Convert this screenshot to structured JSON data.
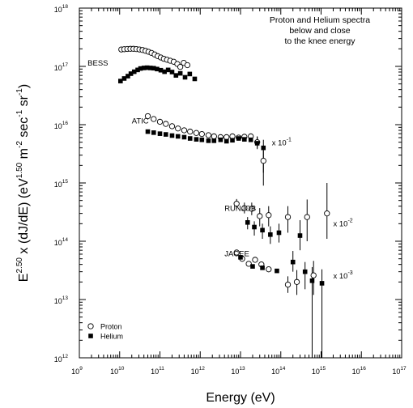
{
  "chart_data": {
    "type": "scatter",
    "title": [
      "Proton and Helium spectra",
      "below and close",
      "to the knee energy"
    ],
    "xlabel": "Energy (eV)",
    "ylabel": {
      "base": "E",
      "exp1": "2.50",
      "mid": " x (dJ/dE)  (eV",
      "exp2": "1.50",
      "unit_m": " m",
      "exp3": "-2",
      "unit_sec": " sec",
      "exp4": "-1",
      "unit_sr": " sr",
      "exp5": "-1",
      "close": ")"
    },
    "x_scale": "log",
    "y_scale": "log",
    "xlim": [
      1000000000.0,
      1e+17
    ],
    "ylim": [
      1000000000000.0,
      1e+18
    ],
    "x_tick_exponents": [
      9,
      10,
      11,
      12,
      13,
      14,
      15,
      16,
      17
    ],
    "y_tick_exponents": [
      12,
      13,
      14,
      15,
      16,
      17,
      18
    ],
    "tick_base": "10",
    "grid": false,
    "legend": {
      "position": "bottom-left",
      "items": [
        {
          "label": "Proton",
          "marker": "open-circle"
        },
        {
          "label": "Helium",
          "marker": "filled-square"
        }
      ]
    },
    "annotations": [
      {
        "key": "bess",
        "text": "BESS",
        "x": 1600000000.0,
        "y": 1.03e+17
      },
      {
        "key": "atic",
        "text": "ATIC",
        "x": 20000000000.0,
        "y": 1.05e+16
      },
      {
        "key": "runjob",
        "text": "RUNJOB",
        "x": 4000000000000.0,
        "y": 330000000000000.0
      },
      {
        "key": "jacee",
        "text": "JACEE",
        "x": 4000000000000.0,
        "y": 55000000000000.0
      }
    ],
    "scale_factors": [
      {
        "key": "atic",
        "base": "x 10",
        "exp": "-1",
        "x": 60000000000000.0,
        "y": 4400000000000000.0
      },
      {
        "key": "runjob",
        "base": "x 10",
        "exp": "-2",
        "x": 2000000000000000.0,
        "y": 180000000000000.0
      },
      {
        "key": "jacee",
        "base": "x 10",
        "exp": "-3",
        "x": 2000000000000000.0,
        "y": 23000000000000.0
      }
    ],
    "series": [
      {
        "name": "Proton",
        "experiment": "BESS",
        "marker": "open-circle",
        "points": [
          [
            11000000000.0,
            1.95e+17
          ],
          [
            13000000000.0,
            1.97e+17
          ],
          [
            15500000000.0,
            1.99e+17
          ],
          [
            18500000000.0,
            2e+17
          ],
          [
            22000000000.0,
            2e+17
          ],
          [
            26000000000.0,
            1.98e+17
          ],
          [
            31000000000.0,
            1.95e+17
          ],
          [
            37000000000.0,
            1.91e+17
          ],
          [
            44000000000.0,
            1.85e+17
          ],
          [
            52000000000.0,
            1.78e+17
          ],
          [
            62000000000.0,
            1.7e+17
          ],
          [
            74000000000.0,
            1.6e+17
          ],
          [
            88000000000.0,
            1.5e+17
          ],
          [
            105000000000.0,
            1.42e+17
          ],
          [
            125000000000.0,
            1.35e+17
          ],
          [
            150000000000.0,
            1.3e+17
          ],
          [
            180000000000.0,
            1.25e+17
          ],
          [
            220000000000.0,
            1.2e+17
          ],
          [
            270000000000.0,
            1.1e+17
          ],
          [
            320000000000.0,
            9.8e+16
          ],
          [
            390000000000.0,
            1.15e+17
          ],
          [
            480000000000.0,
            1.05e+17
          ]
        ]
      },
      {
        "name": "Helium",
        "experiment": "BESS",
        "marker": "filled-square",
        "points": [
          [
            10500000000.0,
            5.6e+16
          ],
          [
            13000000000.0,
            6.2e+16
          ],
          [
            16000000000.0,
            6.8e+16
          ],
          [
            19000000000.0,
            7.5e+16
          ],
          [
            23000000000.0,
            8.1e+16
          ],
          [
            28000000000.0,
            8.7e+16
          ],
          [
            33000000000.0,
            9.2e+16
          ],
          [
            40000000000.0,
            9.4e+16
          ],
          [
            48000000000.0,
            9.5e+16
          ],
          [
            58000000000.0,
            9.4e+16
          ],
          [
            70000000000.0,
            9.3e+16
          ],
          [
            85000000000.0,
            9e+16
          ],
          [
            105000000000.0,
            8.6e+16
          ],
          [
            130000000000.0,
            8.1e+16
          ],
          [
            160000000000.0,
            8.7e+16
          ],
          [
            200000000000.0,
            8e+16
          ],
          [
            250000000000.0,
            7e+16
          ],
          [
            320000000000.0,
            7.6e+16
          ],
          [
            420000000000.0,
            6.5e+16
          ],
          [
            550000000000.0,
            7.4e+16
          ],
          [
            730000000000.0,
            6.1e+16
          ]
        ]
      },
      {
        "name": "Proton",
        "experiment": "ATIC",
        "marker": "open-circle",
        "points": [
          [
            50000000000.0,
            1.4e+16
          ],
          [
            70000000000.0,
            1.25e+16
          ],
          [
            100000000000.0,
            1.12e+16
          ],
          [
            140000000000.0,
            1.03e+16
          ],
          [
            200000000000.0,
            9400000000000000.0
          ],
          [
            280000000000.0,
            8600000000000000.0
          ],
          [
            400000000000.0,
            8000000000000000.0
          ],
          [
            560000000000.0,
            7600000000000000.0
          ],
          [
            800000000000.0,
            7200000000000000.0
          ],
          [
            1100000000000.0,
            6900000000000000.0
          ],
          [
            1600000000000.0,
            6600000000000000.0
          ],
          [
            2200000000000.0,
            6300000000000000.0
          ],
          [
            3200000000000.0,
            6100000000000000.0
          ],
          [
            4500000000000.0,
            6100000000000000.0
          ],
          [
            6300000000000.0,
            6300000000000000.0
          ],
          [
            9000000000000.0,
            6000000000000000.0
          ],
          [
            12500000000000.0,
            6200000000000000.0
          ],
          [
            18000000000000.0,
            6300000000000000.0
          ],
          [
            26000000000000.0,
            5000000000000000.0
          ],
          [
            37000000000000.0,
            2400000000000000.0
          ]
        ],
        "err_low": [
          null,
          null,
          null,
          null,
          null,
          null,
          null,
          null,
          null,
          null,
          null,
          null,
          null,
          null,
          null,
          null,
          5500000000000000.0,
          5600000000000000.0,
          4000000000000000.0,
          1500000000000000.0
        ],
        "err_high": [
          null,
          null,
          null,
          null,
          null,
          null,
          null,
          null,
          null,
          null,
          null,
          null,
          null,
          null,
          null,
          null,
          6900000000000000.0,
          7000000000000000.0,
          6300000000000000.0,
          3600000000000000.0
        ]
      },
      {
        "name": "Helium",
        "experiment": "ATIC",
        "marker": "filled-square",
        "points": [
          [
            50000000000.0,
            7600000000000000.0
          ],
          [
            70000000000.0,
            7300000000000000.0
          ],
          [
            100000000000.0,
            7000000000000000.0
          ],
          [
            140000000000.0,
            6800000000000000.0
          ],
          [
            200000000000.0,
            6500000000000000.0
          ],
          [
            280000000000.0,
            6300000000000000.0
          ],
          [
            400000000000.0,
            6100000000000000.0
          ],
          [
            560000000000.0,
            5800000000000000.0
          ],
          [
            800000000000.0,
            5600000000000000.0
          ],
          [
            1100000000000.0,
            5500000000000000.0
          ],
          [
            1600000000000.0,
            5300000000000000.0
          ],
          [
            2200000000000.0,
            5300000000000000.0
          ],
          [
            3200000000000.0,
            5500000000000000.0
          ],
          [
            4500000000000.0,
            5200000000000000.0
          ],
          [
            6300000000000.0,
            5400000000000000.0
          ],
          [
            9000000000000.0,
            5800000000000000.0
          ],
          [
            12500000000000.0,
            5600000000000000.0
          ],
          [
            18000000000000.0,
            5500000000000000.0
          ],
          [
            26000000000000.0,
            4800000000000000.0
          ],
          [
            37000000000000.0,
            4000000000000000.0
          ]
        ],
        "err_low": [
          null,
          null,
          null,
          null,
          null,
          null,
          null,
          null,
          null,
          null,
          null,
          null,
          null,
          null,
          null,
          null,
          null,
          null,
          3800000000000000.0,
          900000000000000.0
        ],
        "err_high": [
          null,
          null,
          null,
          null,
          null,
          null,
          null,
          null,
          null,
          null,
          null,
          null,
          null,
          null,
          null,
          null,
          null,
          null,
          6200000000000000.0,
          5500000000000000.0
        ]
      },
      {
        "name": "Proton",
        "experiment": "RUNJOB",
        "marker": "open-circle",
        "points": [
          [
            8000000000000.0,
            440000000000000.0
          ],
          [
            12500000000000.0,
            370000000000000.0
          ],
          [
            19000000000000.0,
            360000000000000.0
          ],
          [
            30000000000000.0,
            270000000000000.0
          ],
          [
            50000000000000.0,
            280000000000000.0
          ],
          [
            150000000000000.0,
            260000000000000.0
          ],
          [
            450000000000000.0,
            260000000000000.0
          ],
          [
            1400000000000000.0,
            300000000000000.0
          ]
        ],
        "err_low": [
          360000000000000.0,
          300000000000000.0,
          280000000000000.0,
          180000000000000.0,
          180000000000000.0,
          140000000000000.0,
          100000000000000.0,
          110000000000000.0
        ],
        "err_high": [
          530000000000000.0,
          460000000000000.0,
          460000000000000.0,
          370000000000000.0,
          400000000000000.0,
          400000000000000.0,
          520000000000000.0,
          1000000000000000.0
        ]
      },
      {
        "name": "Helium",
        "experiment": "RUNJOB",
        "marker": "filled-square",
        "points": [
          [
            15000000000000.0,
            210000000000000.0
          ],
          [
            22000000000000.0,
            175000000000000.0
          ],
          [
            35000000000000.0,
            155000000000000.0
          ],
          [
            55000000000000.0,
            130000000000000.0
          ],
          [
            90000000000000.0,
            140000000000000.0
          ],
          [
            300000000000000.0,
            125000000000000.0
          ]
        ],
        "err_low": [
          160000000000000.0,
          125000000000000.0,
          110000000000000.0,
          90000000000000.0,
          95000000000000.0,
          70000000000000.0
        ],
        "err_high": [
          260000000000000.0,
          220000000000000.0,
          200000000000000.0,
          180000000000000.0,
          200000000000000.0,
          230000000000000.0
        ]
      },
      {
        "name": "Proton",
        "experiment": "JACEE",
        "marker": "open-circle",
        "points": [
          [
            8000000000000.0,
            64000000000000.0
          ],
          [
            11000000000000.0,
            50000000000000.0
          ],
          [
            16000000000000.0,
            41000000000000.0
          ],
          [
            23000000000000.0,
            48000000000000.0
          ],
          [
            33000000000000.0,
            40000000000000.0
          ],
          [
            50000000000000.0,
            33000000000000.0
          ],
          [
            150000000000000.0,
            18000000000000.0
          ],
          [
            250000000000000.0,
            20000000000000.0
          ],
          [
            650000000000000.0,
            26000000000000.0
          ]
        ],
        "err_low": [
          null,
          null,
          null,
          null,
          null,
          null,
          13000000000000.0,
          12000000000000.0,
          12000000000000.0
        ],
        "err_high": [
          null,
          null,
          null,
          null,
          null,
          null,
          25000000000000.0,
          32000000000000.0,
          46000000000000.0
        ]
      },
      {
        "name": "Helium",
        "experiment": "JACEE",
        "marker": "filled-square",
        "points": [
          [
            10000000000000.0,
            53000000000000.0
          ],
          [
            20000000000000.0,
            37000000000000.0
          ],
          [
            35000000000000.0,
            35000000000000.0
          ],
          [
            80000000000000.0,
            31000000000000.0
          ],
          [
            200000000000000.0,
            44000000000000.0
          ],
          [
            400000000000000.0,
            30000000000000.0
          ],
          [
            600000000000000.0,
            21000000000000.0
          ],
          [
            1050000000000000.0,
            19000000000000.0
          ]
        ],
        "err_low": [
          null,
          null,
          null,
          null,
          30000000000000.0,
          15000000000000.0,
          1000000000000.0,
          1000000000000.0
        ],
        "err_high": [
          null,
          null,
          null,
          null,
          68000000000000.0,
          44000000000000.0,
          36000000000000.0,
          33000000000000.0
        ]
      }
    ]
  }
}
